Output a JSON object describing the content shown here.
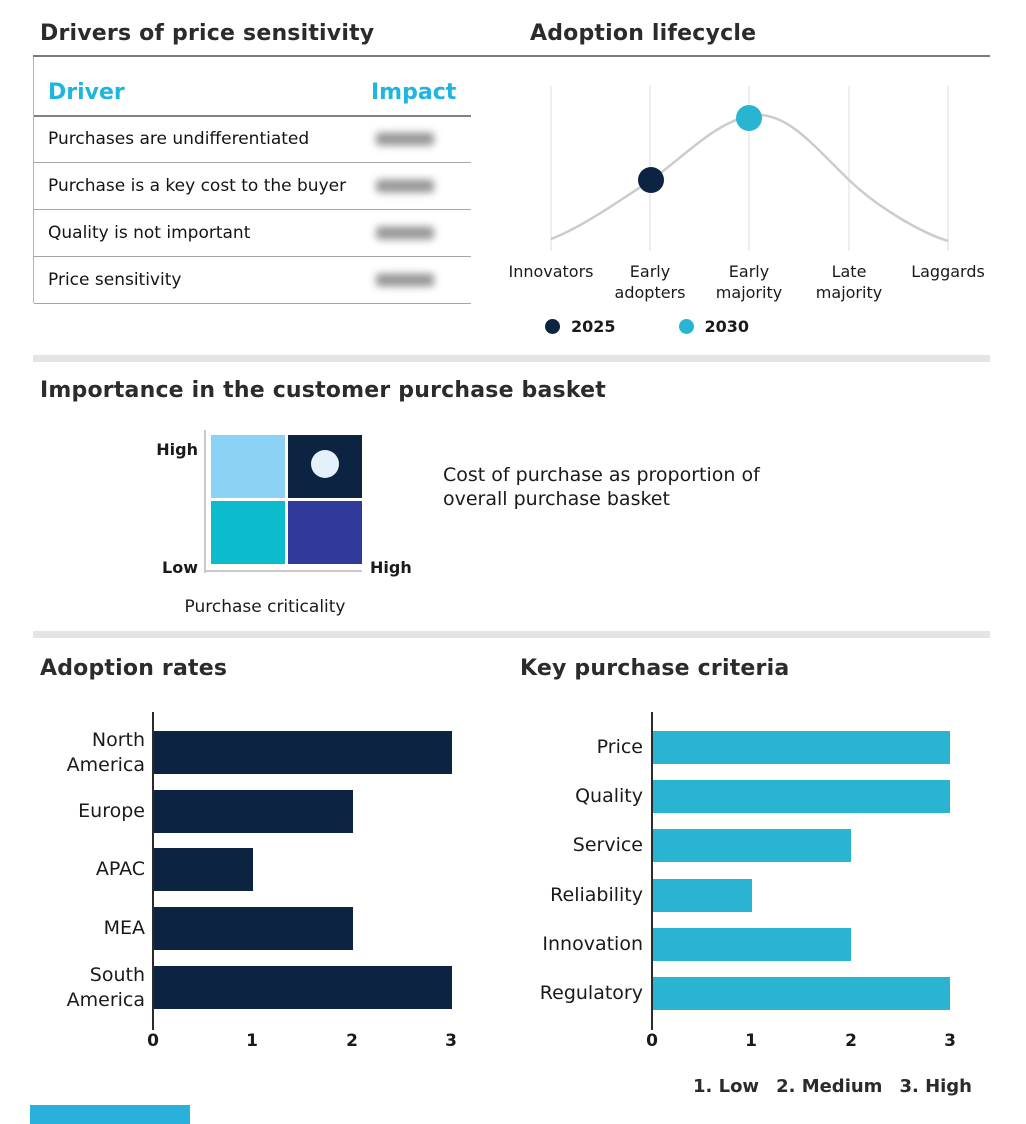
{
  "colors": {
    "navy": "#0d2342",
    "cyan": "#29b4d2",
    "cyan_header": "#1fb5e1",
    "sky": "#8bd2f4",
    "teal": "#0cbccc",
    "indigo": "#2f3a9a",
    "dot_light": "#e4f1fa",
    "curve_gray": "#cccccc",
    "accent_bar": "#29b1dc"
  },
  "drivers": {
    "title": "Drivers of price sensitivity",
    "col_driver": "Driver",
    "col_impact": "Impact",
    "rows": [
      "Purchases are undifferentiated",
      "Purchase is a key cost to the buyer",
      "Quality is not important",
      "Price sensitivity"
    ],
    "impact_values_blurred": true
  },
  "lifecycle": {
    "title": "Adoption lifecycle",
    "stages": [
      "Innovators",
      "Early\nadopters",
      "Early\nmajority",
      "Late\nmajority",
      "Laggards"
    ],
    "legend": [
      {
        "label": "2025",
        "color": "#0d2342"
      },
      {
        "label": "2030",
        "color": "#29b4d2"
      }
    ]
  },
  "basket": {
    "title": "Importance in the customer purchase basket",
    "y_high": "High",
    "y_low": "Low",
    "x_high": "High",
    "axis_title": "Purchase criticality",
    "annotation": "Cost of purchase as proportion of\noverall purchase basket"
  },
  "adoption": {
    "title": "Adoption rates",
    "labels": [
      "North\nAmerica",
      "Europe",
      "APAC",
      "MEA",
      "South\nAmerica"
    ]
  },
  "criteria": {
    "title": "Key purchase criteria",
    "labels": [
      "Price",
      "Quality",
      "Service",
      "Reliability",
      "Innovation",
      "Regulatory"
    ],
    "footnote_items": [
      "1. Low",
      "2. Medium",
      "3. High"
    ]
  },
  "ticks": [
    "0",
    "1",
    "2",
    "3"
  ],
  "chart_data": [
    {
      "type": "line",
      "title": "Adoption lifecycle",
      "x": [
        "Innovators",
        "Early adopters",
        "Early majority",
        "Late majority",
        "Laggards"
      ],
      "curve_shape": "bell curve across adoption stages",
      "curve_relative_heights": [
        0.1,
        0.55,
        1.0,
        0.55,
        0.1
      ],
      "grid": "vertical gridline at each stage",
      "legend_position": "bottom",
      "points": [
        {
          "series": "2025",
          "x": "Early adopters",
          "on_curve": true,
          "color": "#0d2342"
        },
        {
          "series": "2030",
          "x": "Early majority",
          "on_curve": true,
          "color": "#29b4d2"
        }
      ]
    },
    {
      "type": "heatmap",
      "title": "Importance in the customer purchase basket",
      "xlabel": "Purchase criticality",
      "x_range": [
        "Low",
        "High"
      ],
      "y_range": [
        "Low",
        "High"
      ],
      "cells_colors": [
        [
          "#8bd2f4",
          "#0d2342"
        ],
        [
          "#0cbccc",
          "#2f3a9a"
        ]
      ],
      "marker": {
        "cell": "top-right (high criticality / high importance)",
        "color": "#e4f1fa"
      },
      "annotation": "Cost of purchase as proportion of overall purchase basket"
    },
    {
      "type": "bar",
      "title": "Adoption rates",
      "orientation": "horizontal",
      "categories": [
        "North America",
        "Europe",
        "APAC",
        "MEA",
        "South America"
      ],
      "values": [
        3,
        2,
        1,
        2,
        3
      ],
      "xlim": [
        0,
        3
      ],
      "x_ticks": [
        0,
        1,
        2,
        3
      ],
      "bar_color": "#0d2342"
    },
    {
      "type": "bar",
      "title": "Key purchase criteria",
      "orientation": "horizontal",
      "categories": [
        "Price",
        "Quality",
        "Service",
        "Reliability",
        "Innovation",
        "Regulatory"
      ],
      "values": [
        3,
        3,
        2,
        1,
        2,
        3
      ],
      "xlim": [
        0,
        3
      ],
      "x_ticks": [
        0,
        1,
        2,
        3
      ],
      "bar_color": "#29b4d2",
      "footnote": "1. Low  2. Medium  3. High"
    },
    {
      "type": "table",
      "title": "Drivers of price sensitivity",
      "columns": [
        "Driver",
        "Impact"
      ],
      "rows": [
        [
          "Purchases are undifferentiated",
          "(blurred)"
        ],
        [
          "Purchase is a key cost to the buyer",
          "(blurred)"
        ],
        [
          "Quality is not important",
          "(blurred)"
        ],
        [
          "Price sensitivity",
          "(blurred)"
        ]
      ]
    }
  ]
}
